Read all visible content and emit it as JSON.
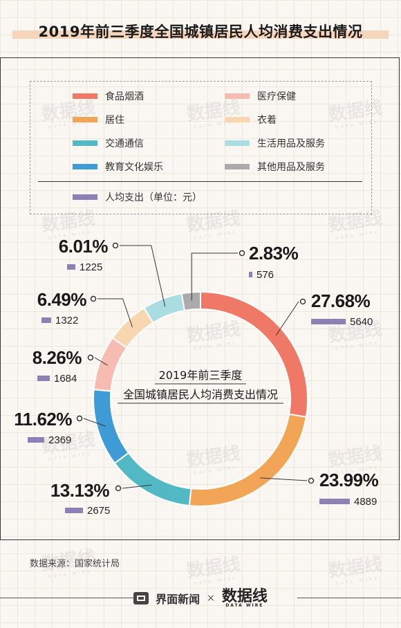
{
  "header": {
    "title": "2019年前三季度全国城镇居民人均消费支出情况"
  },
  "legend": {
    "items": [
      {
        "label": "食品烟酒",
        "color": "#f07866"
      },
      {
        "label": "医疗保健",
        "color": "#f6bcb1"
      },
      {
        "label": "居住",
        "color": "#f2a557"
      },
      {
        "label": "衣着",
        "color": "#f7d6b0"
      },
      {
        "label": "交通通信",
        "color": "#52b9c4"
      },
      {
        "label": "生活用品及服务",
        "color": "#a9dde2"
      },
      {
        "label": "教育文化娱乐",
        "color": "#3f9bd5"
      },
      {
        "label": "其他用品及服务",
        "color": "#ababab"
      }
    ],
    "spending": {
      "label": "人均支出（单位：元）",
      "color": "#8c80b4"
    }
  },
  "chart_data": {
    "type": "pie",
    "style": "donut",
    "title": "2019年前三季度全国城镇居民人均消费支出情况",
    "center_text": [
      "2019年前三季度",
      "全国城镇居民人均消费支出情况"
    ],
    "unit": "元",
    "slices": [
      {
        "name": "食品烟酒",
        "percent": 27.68,
        "percent_label": "27.68%",
        "amount": 5640,
        "color": "#f07866"
      },
      {
        "name": "居住",
        "percent": 23.99,
        "percent_label": "23.99%",
        "amount": 4889,
        "color": "#f2a557"
      },
      {
        "name": "交通通信",
        "percent": 13.13,
        "percent_label": "13.13%",
        "amount": 2675,
        "color": "#52b9c4"
      },
      {
        "name": "教育文化娱乐",
        "percent": 11.62,
        "percent_label": "11.62%",
        "amount": 2369,
        "color": "#3f9bd5"
      },
      {
        "name": "医疗保健",
        "percent": 8.26,
        "percent_label": "8.26%",
        "amount": 1684,
        "color": "#f6bcb1"
      },
      {
        "name": "衣着",
        "percent": 6.49,
        "percent_label": "6.49%",
        "amount": 1322,
        "color": "#f7d6b0"
      },
      {
        "name": "生活用品及服务",
        "percent": 6.01,
        "percent_label": "6.01%",
        "amount": 1225,
        "color": "#a9dde2"
      },
      {
        "name": "其他用品及服务",
        "percent": 2.83,
        "percent_label": "2.83%",
        "amount": 576,
        "color": "#ababab"
      }
    ],
    "amount_bar_color": "#8c80b4"
  },
  "footer": {
    "source": "数据来源：国家统计局",
    "brand": "界面新闻",
    "separator": "×",
    "partner_logo": "数据线",
    "partner_logo_sub": "DATA WIRE"
  },
  "watermark": {
    "text": "数据线",
    "sub": "DATA WIRE"
  }
}
